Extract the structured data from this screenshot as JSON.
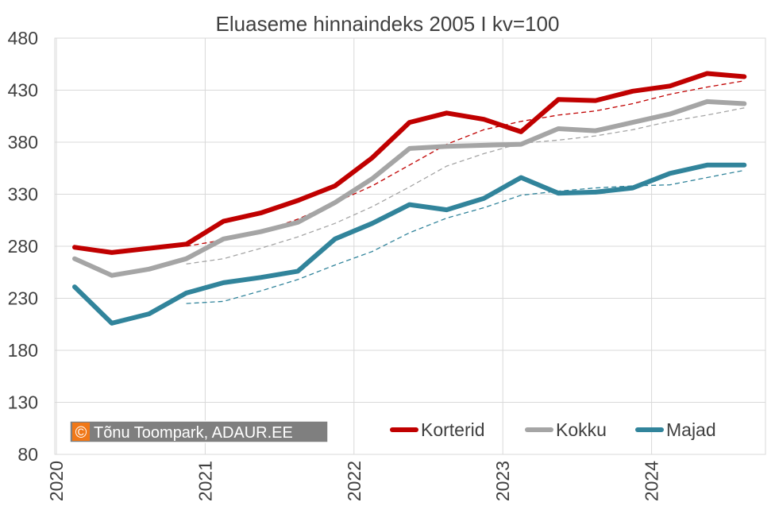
{
  "chart_data": {
    "type": "line",
    "title": "Eluaseme hinnaindeks 2005 I kv=100",
    "xlabel": "",
    "ylabel": "",
    "ylim": [
      80,
      480
    ],
    "yticks": [
      80,
      130,
      180,
      230,
      280,
      330,
      380,
      430,
      480
    ],
    "x_tick_labels": [
      "2020",
      "2021",
      "2022",
      "2023",
      "2024"
    ],
    "x_tick_rotation": "vertical",
    "grid": true,
    "legend_position": "bottom-right",
    "credit": {
      "symbol": "©",
      "text": "Tõnu Toompark, ADAUR.EE",
      "background_color": "#7f7f7f",
      "symbol_color": "#f07818"
    },
    "quarters": [
      "2020 I",
      "2020 II",
      "2020 III",
      "2020 IV",
      "2021 I",
      "2021 II",
      "2021 III",
      "2021 IV",
      "2022 I",
      "2022 II",
      "2022 III",
      "2022 IV",
      "2023 I",
      "2023 II",
      "2023 III",
      "2023 IV",
      "2024 I",
      "2024 II",
      "2024 III"
    ],
    "series": [
      {
        "name": "Korterid",
        "color": "#c00000",
        "values": [
          279,
          274,
          278,
          282,
          304,
          312,
          324,
          338,
          365,
          399,
          408,
          402,
          390,
          421,
          420,
          429,
          434,
          446,
          443
        ]
      },
      {
        "name": "Kokku",
        "color": "#a5a5a5",
        "values": [
          268,
          252,
          258,
          268,
          287,
          294,
          303,
          322,
          345,
          374,
          376,
          377,
          378,
          393,
          391,
          399,
          407,
          419,
          417
        ]
      },
      {
        "name": "Majad",
        "color": "#31849b",
        "values": [
          241,
          206,
          215,
          235,
          245,
          250,
          256,
          287,
          302,
          320,
          315,
          326,
          346,
          331,
          332,
          336,
          350,
          358,
          358
        ]
      }
    ],
    "trend_series": [
      {
        "of": "Korterid",
        "color": "#c00000",
        "values": [
          null,
          null,
          null,
          280,
          286,
          294,
          306,
          322,
          338,
          358,
          378,
          392,
          400,
          406,
          410,
          417,
          426,
          433,
          439
        ]
      },
      {
        "of": "Kokku",
        "color": "#a5a5a5",
        "values": [
          null,
          null,
          null,
          263,
          268,
          278,
          289,
          302,
          318,
          337,
          357,
          369,
          379,
          382,
          386,
          392,
          400,
          406,
          413
        ]
      },
      {
        "of": "Majad",
        "color": "#31849b",
        "values": [
          null,
          null,
          null,
          225,
          227,
          237,
          248,
          262,
          275,
          293,
          307,
          317,
          329,
          333,
          336,
          338,
          339,
          346,
          353
        ]
      }
    ]
  }
}
